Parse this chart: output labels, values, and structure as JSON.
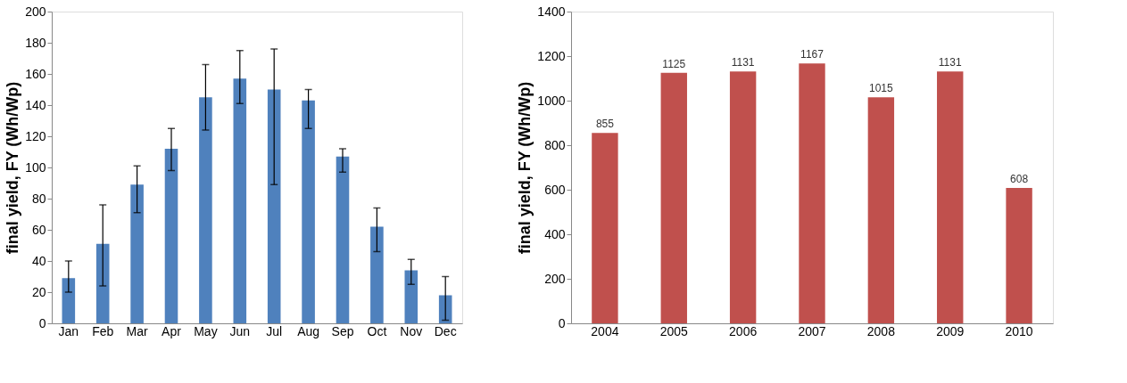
{
  "chart_data": [
    {
      "type": "bar",
      "ylabel": "final yield, FY (Wh/Wp)",
      "categories": [
        "Jan",
        "Feb",
        "Mar",
        "Apr",
        "May",
        "Jun",
        "Jul",
        "Aug",
        "Sep",
        "Oct",
        "Nov",
        "Dec"
      ],
      "color": "#4f81bd",
      "values": [
        29,
        51,
        89,
        112,
        145,
        157,
        150,
        143,
        107,
        62,
        34,
        18
      ],
      "errors": [
        [
          20,
          40
        ],
        [
          24,
          76
        ],
        [
          71,
          101
        ],
        [
          98,
          125
        ],
        [
          124,
          166
        ],
        [
          141,
          175
        ],
        [
          89,
          176
        ],
        [
          125,
          150
        ],
        [
          97,
          112
        ],
        [
          46,
          74
        ],
        [
          25,
          41
        ],
        [
          2,
          30
        ]
      ],
      "ylim": [
        0,
        200
      ],
      "yticks": [
        0,
        20,
        40,
        60,
        80,
        100,
        120,
        140,
        160,
        180,
        200
      ],
      "grid": false
    },
    {
      "type": "bar",
      "ylabel": "final yield, FY (Wh/Wp)",
      "categories": [
        "2004",
        "2005",
        "2006",
        "2007",
        "2008",
        "2009",
        "2010"
      ],
      "color": "#c0504d",
      "values": [
        855,
        1125,
        1131,
        1167,
        1015,
        1131,
        608
      ],
      "data_labels": true,
      "ylim": [
        0,
        1400
      ],
      "yticks": [
        0,
        200,
        400,
        600,
        800,
        1000,
        1200,
        1400
      ],
      "grid": false
    }
  ]
}
